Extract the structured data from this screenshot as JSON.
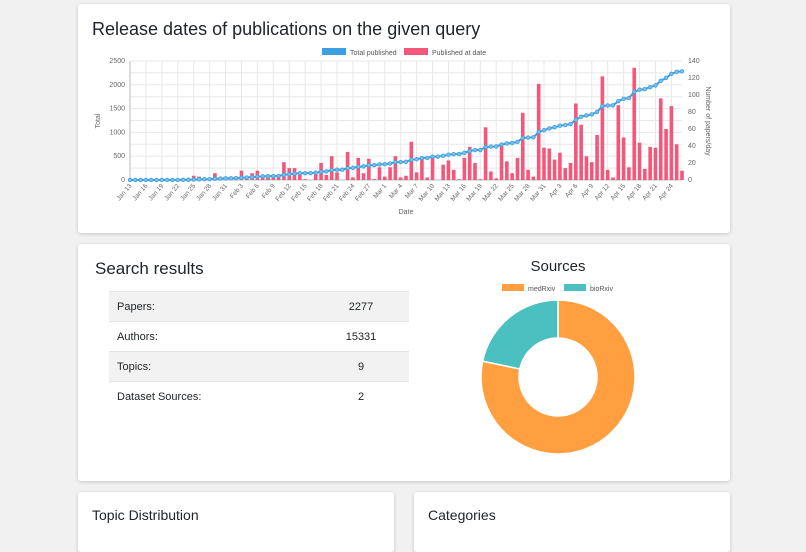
{
  "chart_data": [
    {
      "type": "bar+line",
      "title": "Release dates of publications on the given query",
      "legend": [
        "Total published",
        "Published at date"
      ],
      "legend_placement": "top",
      "xlabel": "Date",
      "ylabel_left": "Total",
      "ylabel_right": "Number of papers/day",
      "ylim_left": [
        0,
        2500
      ],
      "ylim_right": [
        0,
        140
      ],
      "yticks_left": [
        "0",
        "500",
        "1000",
        "1500",
        "2000",
        "2500"
      ],
      "yticks_right": [
        "0",
        "20",
        "40",
        "60",
        "80",
        "100",
        "120",
        "140"
      ],
      "xticks": [
        "Jan 13",
        "Jan 16",
        "Jan 19",
        "Jan 22",
        "Jan 25",
        "Jan 28",
        "Jan 31",
        "Feb 3",
        "Feb 6",
        "Feb 9",
        "Feb 12",
        "Feb 15",
        "Feb 18",
        "Feb 21",
        "Feb 24",
        "Feb 27",
        "Mar 1",
        "Mar 4",
        "Mar 7",
        "Mar 10",
        "Mar 13",
        "Mar 16",
        "Mar 19",
        "Mar 22",
        "Mar 25",
        "Mar 28",
        "Mar 31",
        "Apr 3",
        "Apr 6",
        "Apr 9",
        "Apr 12",
        "Apr 15",
        "Apr 18",
        "Apr 21",
        "Apr 24"
      ],
      "x_start": "Jan 13",
      "x_end": "Apr 26",
      "grid": true,
      "colors": {
        "total": "#3b9fe0",
        "daily": "#f5577a"
      },
      "daily": [
        0,
        0,
        0,
        0,
        0,
        0,
        1,
        0,
        0,
        1,
        1,
        2,
        5,
        4,
        2,
        2,
        8,
        3,
        4,
        3,
        1,
        11,
        4,
        8,
        11,
        5,
        3,
        4,
        3,
        21,
        14,
        14,
        8,
        1,
        0,
        9,
        20,
        6,
        28,
        9,
        0,
        33,
        3,
        26,
        8,
        25,
        1,
        15,
        4,
        15,
        28,
        3,
        5,
        45,
        9,
        25,
        3,
        26,
        0,
        18,
        23,
        12,
        1,
        26,
        39,
        20,
        1,
        62,
        10,
        2,
        41,
        22,
        8,
        26,
        79,
        12,
        4,
        113,
        38,
        37,
        24,
        32,
        14,
        20,
        90,
        65,
        28,
        21,
        53,
        122,
        12,
        3,
        88,
        50,
        15,
        132,
        44,
        13,
        39,
        38,
        96,
        60,
        87,
        42,
        11
      ]
    },
    {
      "type": "pie",
      "title": "Sources",
      "categories": [
        "medRxiv",
        "bioRxiv"
      ],
      "values": [
        78.3,
        21.7
      ],
      "colors": [
        "#ff9f40",
        "#4bc0c0"
      ],
      "legend_placement": "top"
    }
  ],
  "search": {
    "title": "Search results",
    "rows": [
      {
        "label": "Papers:",
        "value": "2277"
      },
      {
        "label": "Authors:",
        "value": "15331"
      },
      {
        "label": "Topics:",
        "value": "9"
      },
      {
        "label": "Dataset Sources:",
        "value": "2"
      }
    ]
  },
  "topic": {
    "title": "Topic Distribution"
  },
  "categories": {
    "title": "Categories"
  }
}
